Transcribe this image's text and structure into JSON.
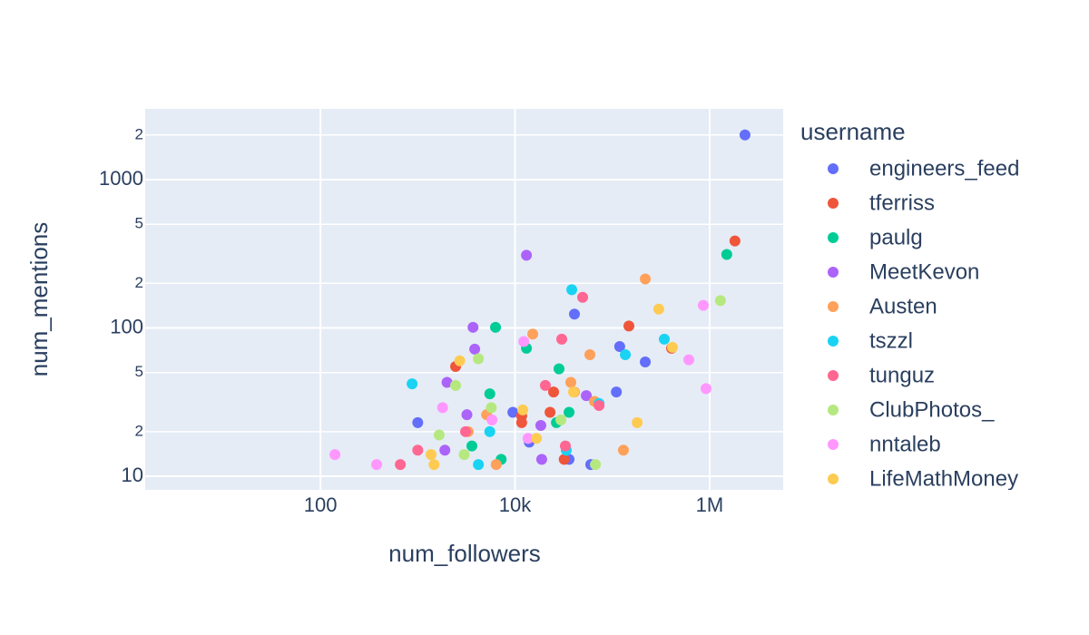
{
  "chart_data": {
    "type": "scatter",
    "x_label": "num_followers",
    "y_label": "num_mentions",
    "legend_title": "username",
    "log_x": true,
    "log_y": true,
    "grid": true,
    "legend": "right",
    "xlim": [
      1.58,
      5700000
    ],
    "ylim": [
      8.1,
      3000
    ],
    "xticks": [
      100,
      {
        "value": 10000,
        "label": "10k"
      },
      {
        "value": 1000000,
        "label": "1M"
      }
    ],
    "yticks": [
      10,
      {
        "value": 20,
        "label": "2"
      },
      {
        "value": 50,
        "label": "5"
      },
      100,
      {
        "value": 200,
        "label": "2"
      },
      {
        "value": 500,
        "label": "5"
      },
      1000,
      {
        "value": 2000,
        "label": "2"
      }
    ],
    "series": [
      {
        "name": "engineers_feed",
        "color": "#636efa",
        "x": [
          2310000,
          40800,
          119000,
          218000,
          110000,
          9500,
          1000,
          14000,
          35900,
          60000
        ],
        "values": [
          2000,
          124,
          75,
          59,
          37,
          27,
          23,
          17,
          13,
          12
        ]
      },
      {
        "name": "tferriss",
        "color": "#EF553B",
        "x": [
          1820000,
          148000,
          406000,
          2450,
          24900,
          11700,
          11700,
          22900,
          32000
        ],
        "values": [
          386,
          103,
          73,
          55,
          37,
          25.5,
          23,
          27,
          13
        ]
      },
      {
        "name": "paulg",
        "color": "#00cc96",
        "x": [
          1500000,
          6300,
          13100,
          28300,
          5500,
          35900,
          26600,
          3600,
          7200
        ],
        "values": [
          313,
          101,
          73,
          53,
          36,
          27,
          23,
          16,
          13
        ]
      },
      {
        "name": "MeetKevon",
        "color": "#ab63fa",
        "x": [
          13100,
          3700,
          3850,
          2000,
          54000,
          3200,
          18400,
          1900,
          18800
        ],
        "values": [
          309,
          101,
          72,
          43,
          35,
          26,
          22,
          15,
          13
        ]
      },
      {
        "name": "Austen",
        "color": "#FFA15A",
        "x": [
          218000,
          15200,
          58800,
          37400,
          40800,
          65500,
          5100,
          3300,
          130000,
          6400
        ],
        "values": [
          214,
          91,
          66,
          43,
          37,
          32,
          26,
          20,
          15,
          12
        ]
      },
      {
        "name": "tszzl",
        "color": "#19d3f3",
        "x": [
          38300,
          342000,
          136000,
          875,
          73000,
          5500,
          33600,
          4200
        ],
        "values": [
          181,
          84,
          66,
          42,
          31,
          20,
          15,
          12
        ]
      },
      {
        "name": "tunguz",
        "color": "#FF6692",
        "x": [
          49500,
          30200,
          20500,
          73000,
          3100,
          1000,
          32900,
          662
        ],
        "values": [
          161,
          84,
          41,
          30,
          20,
          15,
          16,
          12
        ]
      },
      {
        "name": "ClubPhotos_",
        "color": "#B6E880",
        "x": [
          1290000,
          4200,
          2450,
          5700,
          29600,
          1660,
          3000,
          67000
        ],
        "values": [
          153,
          62,
          41,
          29,
          24,
          19,
          14,
          12
        ]
      },
      {
        "name": "nntaleb",
        "color": "#FF97FF",
        "x": [
          861000,
          611000,
          918000,
          12300,
          1800,
          5800,
          13600,
          141,
          378
        ],
        "values": [
          142,
          61,
          39,
          81,
          29,
          24,
          18,
          14,
          12
        ]
      },
      {
        "name": "LifeMathMoney",
        "color": "#FECB52",
        "x": [
          300000,
          415000,
          2700,
          39900,
          12000,
          180000,
          16600,
          1370,
          1470
        ],
        "values": [
          134,
          74,
          60,
          37,
          28,
          23,
          18,
          14,
          12
        ]
      }
    ]
  }
}
